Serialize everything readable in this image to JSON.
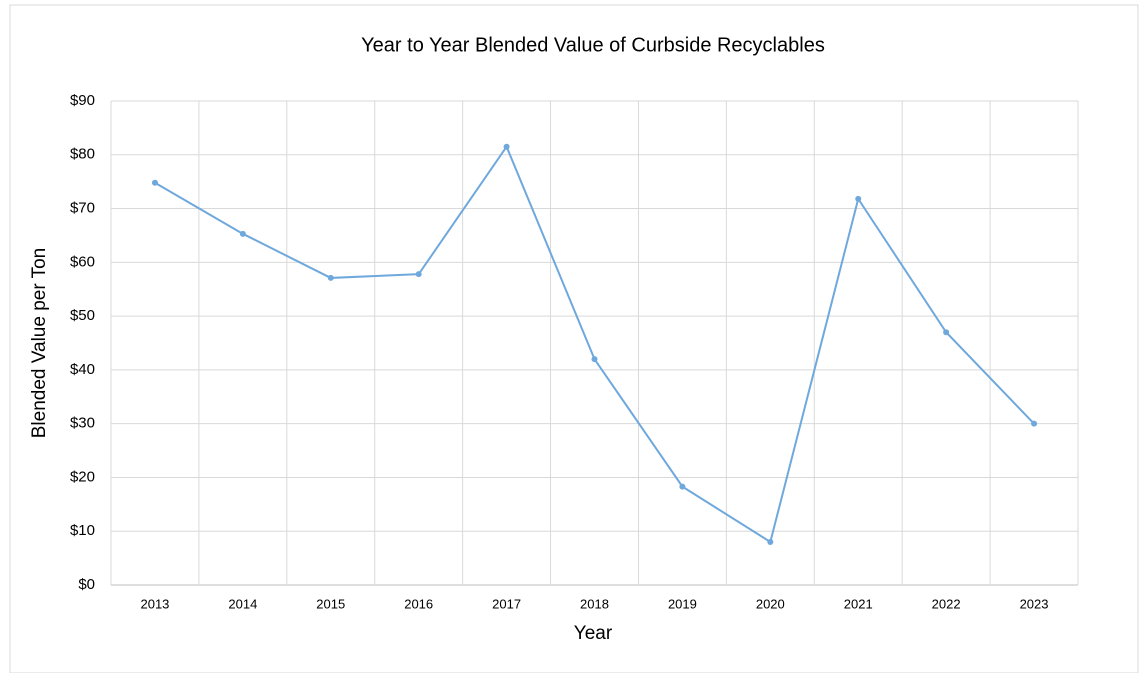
{
  "chart_data": {
    "type": "line",
    "title": "Year to Year Blended Value of Curbside Recyclables",
    "x_label": "Year",
    "y_label": "Blended Value per Ton",
    "categories": [
      "2013",
      "2014",
      "2015",
      "2016",
      "2017",
      "2018",
      "2019",
      "2020",
      "2021",
      "2022",
      "2023"
    ],
    "series": [
      {
        "name": "Blended Value per Ton",
        "color": "#6fa8dc",
        "values": [
          74.8,
          65.3,
          57.1,
          57.8,
          81.5,
          42,
          18.3,
          8,
          71.8,
          47,
          30
        ]
      }
    ],
    "ylim": [
      0,
      90
    ],
    "yticks": [
      {
        "value": 0,
        "label": "$0"
      },
      {
        "value": 10,
        "label": "$10"
      },
      {
        "value": 20,
        "label": "$20"
      },
      {
        "value": 30,
        "label": "$30"
      },
      {
        "value": 40,
        "label": "$40"
      },
      {
        "value": 50,
        "label": "$50"
      },
      {
        "value": 60,
        "label": "$60"
      },
      {
        "value": 70,
        "label": "$70"
      },
      {
        "value": 80,
        "label": "$80"
      },
      {
        "value": 90,
        "label": "$90"
      }
    ],
    "grid": true
  }
}
